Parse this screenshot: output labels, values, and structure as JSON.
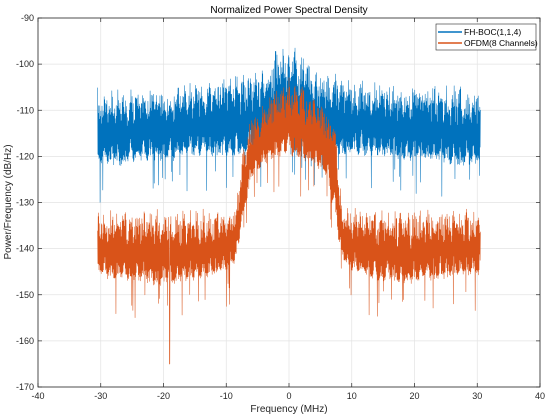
{
  "chart_data": {
    "type": "line",
    "title": "Normalized Power Spectral Density",
    "xlabel": "Frequency (MHz)",
    "ylabel": "Power/Frequency (dB/Hz)",
    "xlim": [
      -40,
      40
    ],
    "ylim": [
      -170,
      -90
    ],
    "xticks": [
      -40,
      -30,
      -20,
      -10,
      0,
      10,
      20,
      30,
      40
    ],
    "yticks": [
      -170,
      -160,
      -150,
      -140,
      -130,
      -120,
      -110,
      -100,
      -90
    ],
    "grid": true,
    "legend_position": "top-right",
    "series": [
      {
        "name": "FH-BOC(1,1,4)",
        "color": "#0072BD",
        "x": [
          -30.5,
          -28,
          -26,
          -24,
          -22,
          -20,
          -18,
          -16,
          -14,
          -12,
          -10,
          -8,
          -6,
          -4,
          -3,
          -2,
          -1,
          0,
          1,
          2,
          3,
          4,
          6,
          8,
          10,
          12,
          14,
          16,
          18,
          20,
          22,
          24,
          26,
          28,
          30.5
        ],
        "upper": [
          -104,
          -104,
          -103.5,
          -103.5,
          -103,
          -103,
          -103,
          -102.5,
          -102.5,
          -102,
          -101.5,
          -101,
          -101,
          -100,
          -98,
          -95,
          -95,
          -94,
          -95,
          -95.5,
          -98,
          -100,
          -101,
          -101,
          -101.5,
          -102,
          -102.5,
          -102.5,
          -103,
          -103,
          -103,
          -103.5,
          -103.5,
          -104,
          -104
        ],
        "lower": [
          -122,
          -122,
          -122,
          -121,
          -121,
          -121,
          -121,
          -120,
          -120,
          -120,
          -120,
          -120,
          -119,
          -119,
          -118,
          -117,
          -116,
          -116,
          -116,
          -117,
          -118,
          -119,
          -119,
          -120,
          -120,
          -120,
          -120,
          -120,
          -121,
          -121,
          -121,
          -121,
          -122,
          -122,
          -122
        ]
      },
      {
        "name": "OFDM(8 Channels)",
        "color": "#D95319",
        "x": [
          -30.5,
          -28,
          -26,
          -24,
          -22,
          -20,
          -18,
          -16,
          -14,
          -12,
          -10,
          -8.5,
          -7.5,
          -6,
          -4,
          -2,
          0,
          2,
          4,
          6,
          7.5,
          8.5,
          10,
          12,
          14,
          16,
          18,
          20,
          22,
          24,
          26,
          28,
          30.5
        ],
        "upper": [
          -131,
          -130.5,
          -130.5,
          -130.5,
          -130.5,
          -130.5,
          -130.5,
          -130.5,
          -130.5,
          -130.5,
          -130.5,
          -130,
          -118,
          -110,
          -107,
          -104,
          -102,
          -103,
          -105,
          -108,
          -112,
          -130,
          -130,
          -130.5,
          -130.5,
          -130.5,
          -130.5,
          -130.5,
          -130.5,
          -130.5,
          -130.5,
          -130.5,
          -131
        ],
        "lower": [
          -146,
          -147,
          -147,
          -147,
          -148,
          -148,
          -148,
          -147,
          -147,
          -146,
          -145,
          -143,
          -135,
          -125,
          -122,
          -120,
          -120,
          -121,
          -122,
          -125,
          -135,
          -143,
          -145,
          -146,
          -147,
          -147,
          -148,
          -148,
          -147,
          -147,
          -146,
          -146,
          -146
        ],
        "min_spike": {
          "x": -19,
          "y": -165
        }
      }
    ]
  }
}
